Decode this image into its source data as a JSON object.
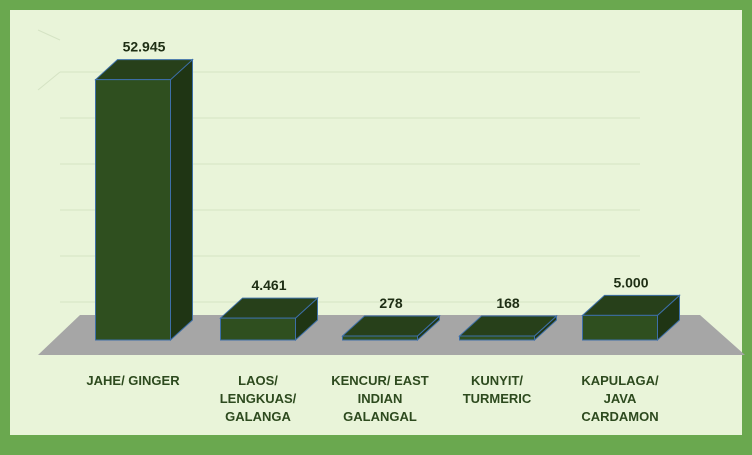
{
  "chart_data": {
    "type": "bar3d",
    "categories": [
      "JAHE/ GINGER",
      "LAOS/ LENGKUAS/ GALANGA",
      "KENCUR/ EAST INDIAN GALANGAL",
      "KUNYIT/ TURMERIC",
      "KAPULAGA/ JAVA CARDAMON"
    ],
    "values": [
      52945,
      4461,
      278,
      168,
      5000
    ],
    "value_labels": [
      "52.945",
      "4.461",
      "278",
      "168",
      "5.000"
    ],
    "color": "#2f4f1f",
    "ylim": [
      0,
      60000
    ]
  }
}
